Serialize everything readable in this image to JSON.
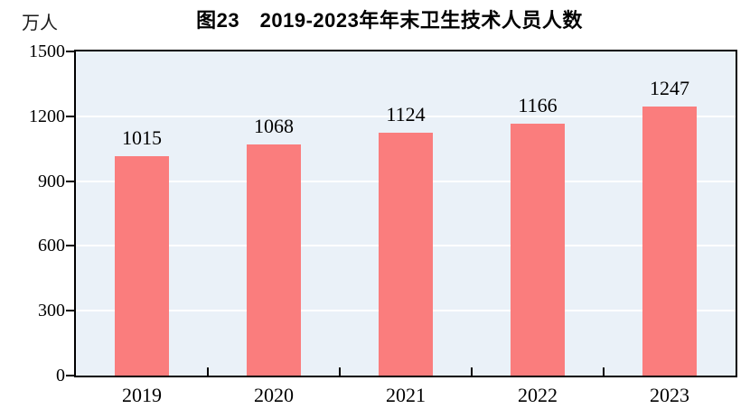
{
  "chart_data": {
    "type": "bar",
    "title": "图23　2019-2023年年末卫生技术人员人数",
    "unit_label": "万人",
    "categories": [
      "2019",
      "2020",
      "2021",
      "2022",
      "2023"
    ],
    "values": [
      1015,
      1068,
      1124,
      1166,
      1247
    ],
    "ylim": [
      0,
      1500
    ],
    "yticks": [
      0,
      300,
      600,
      900,
      1200,
      1500
    ],
    "xlabel": "",
    "ylabel": "万人",
    "legend_position": "none",
    "grid": "horizontal",
    "colors": {
      "bar_fill": "#fa7d7d",
      "plot_background": "#eaf1f8",
      "gridline": "#ffffff",
      "axis_border": "#000000",
      "text": "#000000"
    }
  }
}
